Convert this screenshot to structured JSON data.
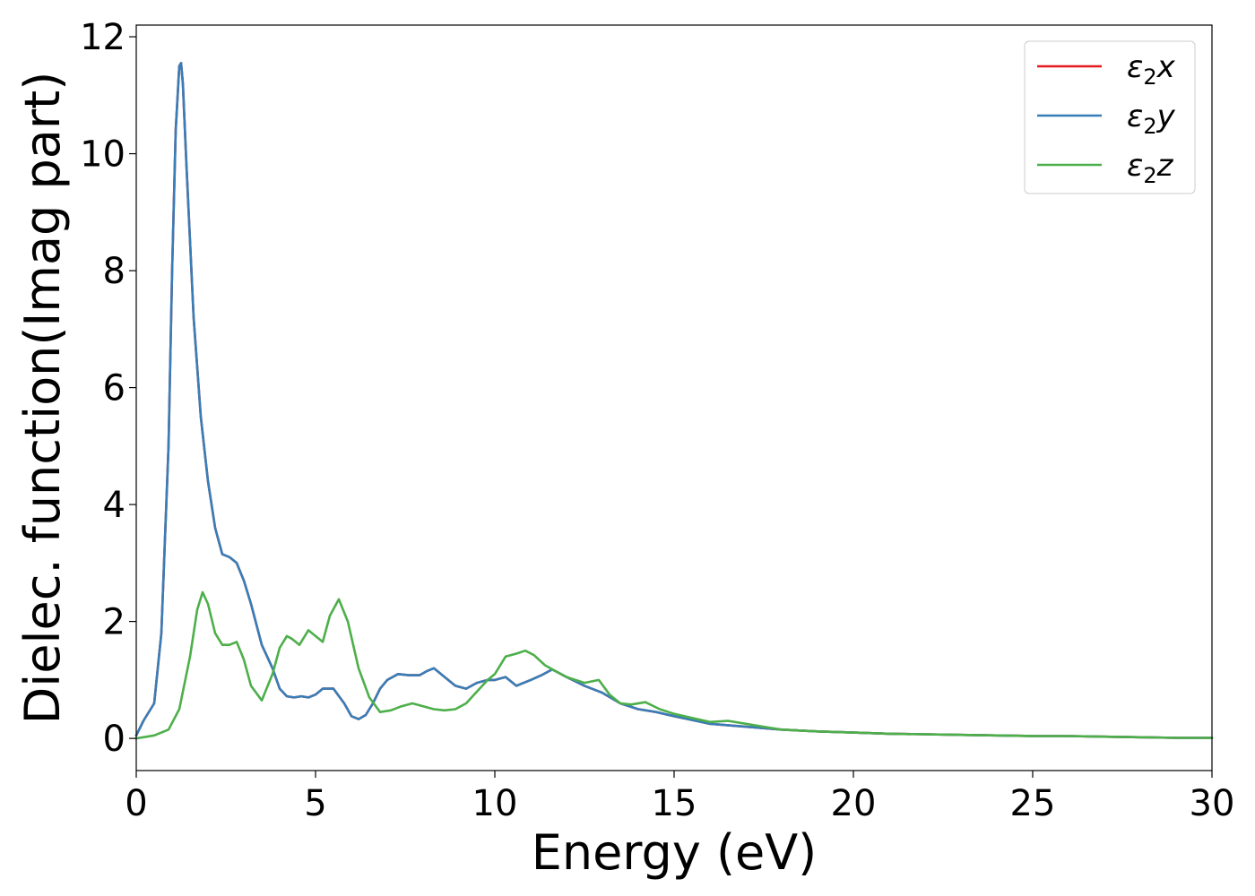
{
  "chart_data": {
    "type": "line",
    "title": "",
    "xlabel": "Energy (eV)",
    "ylabel": "Dielec. function(Imag part)",
    "xlim": [
      0,
      30
    ],
    "ylim": [
      -0.55,
      12.2
    ],
    "xticks": [
      "0",
      "5",
      "10",
      "15",
      "20",
      "25",
      "30"
    ],
    "yticks": [
      "0",
      "2",
      "4",
      "6",
      "8",
      "10",
      "12"
    ],
    "grid": false,
    "legend_position": "top-right",
    "series": [
      {
        "name": "ε₂x",
        "legend_main": "ε",
        "legend_sub": "2",
        "legend_suffix": "x",
        "color": "#e41a1c",
        "x": [
          0,
          0.2,
          0.5,
          0.7,
          0.9,
          1.0,
          1.1,
          1.2,
          1.25,
          1.3,
          1.4,
          1.6,
          1.8,
          2.0,
          2.2,
          2.4,
          2.6,
          2.8,
          3.0,
          3.2,
          3.5,
          3.8,
          4.0,
          4.2,
          4.4,
          4.6,
          4.8,
          5.0,
          5.2,
          5.5,
          5.8,
          6.0,
          6.2,
          6.4,
          6.6,
          6.8,
          7.0,
          7.3,
          7.6,
          7.9,
          8.1,
          8.3,
          8.6,
          8.9,
          9.2,
          9.5,
          9.8,
          10.0,
          10.3,
          10.6,
          11.0,
          11.3,
          11.6,
          12.0,
          12.5,
          13.0,
          13.5,
          14.0,
          14.5,
          15.0,
          16.0,
          17.0,
          18.0,
          19.0,
          20.0,
          21.0,
          22.0,
          23.0,
          24.0,
          25.0,
          26.0,
          27.0,
          28.0,
          29.0,
          30.0
        ],
        "values": [
          0.05,
          0.3,
          0.6,
          1.8,
          5.0,
          8.0,
          10.4,
          11.5,
          11.55,
          11.2,
          9.8,
          7.2,
          5.5,
          4.4,
          3.6,
          3.15,
          3.1,
          3.0,
          2.7,
          2.3,
          1.6,
          1.2,
          0.85,
          0.72,
          0.7,
          0.72,
          0.7,
          0.75,
          0.85,
          0.85,
          0.6,
          0.38,
          0.33,
          0.4,
          0.6,
          0.85,
          1.0,
          1.1,
          1.08,
          1.08,
          1.15,
          1.2,
          1.05,
          0.9,
          0.85,
          0.95,
          1.0,
          1.0,
          1.05,
          0.9,
          1.0,
          1.08,
          1.18,
          1.05,
          0.9,
          0.78,
          0.6,
          0.5,
          0.45,
          0.38,
          0.25,
          0.2,
          0.15,
          0.12,
          0.1,
          0.08,
          0.07,
          0.06,
          0.05,
          0.04,
          0.04,
          0.03,
          0.02,
          0.01,
          0.01
        ]
      },
      {
        "name": "ε₂y",
        "legend_main": "ε",
        "legend_sub": "2",
        "legend_suffix": "y",
        "color": "#377eb8",
        "x": [
          0,
          0.2,
          0.5,
          0.7,
          0.9,
          1.0,
          1.1,
          1.2,
          1.25,
          1.3,
          1.4,
          1.6,
          1.8,
          2.0,
          2.2,
          2.4,
          2.6,
          2.8,
          3.0,
          3.2,
          3.5,
          3.8,
          4.0,
          4.2,
          4.4,
          4.6,
          4.8,
          5.0,
          5.2,
          5.5,
          5.8,
          6.0,
          6.2,
          6.4,
          6.6,
          6.8,
          7.0,
          7.3,
          7.6,
          7.9,
          8.1,
          8.3,
          8.6,
          8.9,
          9.2,
          9.5,
          9.8,
          10.0,
          10.3,
          10.6,
          11.0,
          11.3,
          11.6,
          12.0,
          12.5,
          13.0,
          13.5,
          14.0,
          14.5,
          15.0,
          16.0,
          17.0,
          18.0,
          19.0,
          20.0,
          21.0,
          22.0,
          23.0,
          24.0,
          25.0,
          26.0,
          27.0,
          28.0,
          29.0,
          30.0
        ],
        "values": [
          0.05,
          0.3,
          0.6,
          1.8,
          5.0,
          8.0,
          10.4,
          11.5,
          11.55,
          11.2,
          9.8,
          7.2,
          5.5,
          4.4,
          3.6,
          3.15,
          3.1,
          3.0,
          2.7,
          2.3,
          1.6,
          1.2,
          0.85,
          0.72,
          0.7,
          0.72,
          0.7,
          0.75,
          0.85,
          0.85,
          0.6,
          0.38,
          0.33,
          0.4,
          0.6,
          0.85,
          1.0,
          1.1,
          1.08,
          1.08,
          1.15,
          1.2,
          1.05,
          0.9,
          0.85,
          0.95,
          1.0,
          1.0,
          1.05,
          0.9,
          1.0,
          1.08,
          1.18,
          1.05,
          0.9,
          0.78,
          0.6,
          0.5,
          0.45,
          0.38,
          0.25,
          0.2,
          0.15,
          0.12,
          0.1,
          0.08,
          0.07,
          0.06,
          0.05,
          0.04,
          0.04,
          0.03,
          0.02,
          0.01,
          0.01
        ]
      },
      {
        "name": "ε₂z",
        "legend_main": "ε",
        "legend_sub": "2",
        "legend_suffix": "z",
        "color": "#4daf4a",
        "x": [
          0,
          0.5,
          0.9,
          1.2,
          1.5,
          1.7,
          1.85,
          2.0,
          2.2,
          2.4,
          2.6,
          2.8,
          3.0,
          3.2,
          3.5,
          3.8,
          4.0,
          4.2,
          4.35,
          4.55,
          4.8,
          5.0,
          5.2,
          5.4,
          5.65,
          5.9,
          6.2,
          6.5,
          6.8,
          7.1,
          7.4,
          7.7,
          8.0,
          8.3,
          8.6,
          8.9,
          9.2,
          9.5,
          9.8,
          10.0,
          10.3,
          10.6,
          10.85,
          11.1,
          11.4,
          11.7,
          12.0,
          12.5,
          12.9,
          13.2,
          13.5,
          13.8,
          14.2,
          14.6,
          15.0,
          15.5,
          16.0,
          16.5,
          17.0,
          17.5,
          18.0,
          19.0,
          20.0,
          21.0,
          22.0,
          23.0,
          24.0,
          25.0,
          26.0,
          27.0,
          28.0,
          29.0,
          30.0
        ],
        "values": [
          0.0,
          0.05,
          0.15,
          0.5,
          1.4,
          2.2,
          2.5,
          2.3,
          1.8,
          1.6,
          1.6,
          1.65,
          1.35,
          0.9,
          0.65,
          1.1,
          1.55,
          1.75,
          1.7,
          1.6,
          1.85,
          1.75,
          1.65,
          2.1,
          2.38,
          2.0,
          1.2,
          0.7,
          0.45,
          0.48,
          0.55,
          0.6,
          0.55,
          0.5,
          0.48,
          0.5,
          0.6,
          0.8,
          1.0,
          1.1,
          1.4,
          1.45,
          1.5,
          1.42,
          1.25,
          1.15,
          1.05,
          0.95,
          1.0,
          0.75,
          0.6,
          0.58,
          0.62,
          0.5,
          0.42,
          0.35,
          0.28,
          0.3,
          0.25,
          0.2,
          0.15,
          0.12,
          0.1,
          0.08,
          0.07,
          0.06,
          0.05,
          0.04,
          0.04,
          0.03,
          0.02,
          0.01,
          0.01
        ]
      }
    ]
  }
}
